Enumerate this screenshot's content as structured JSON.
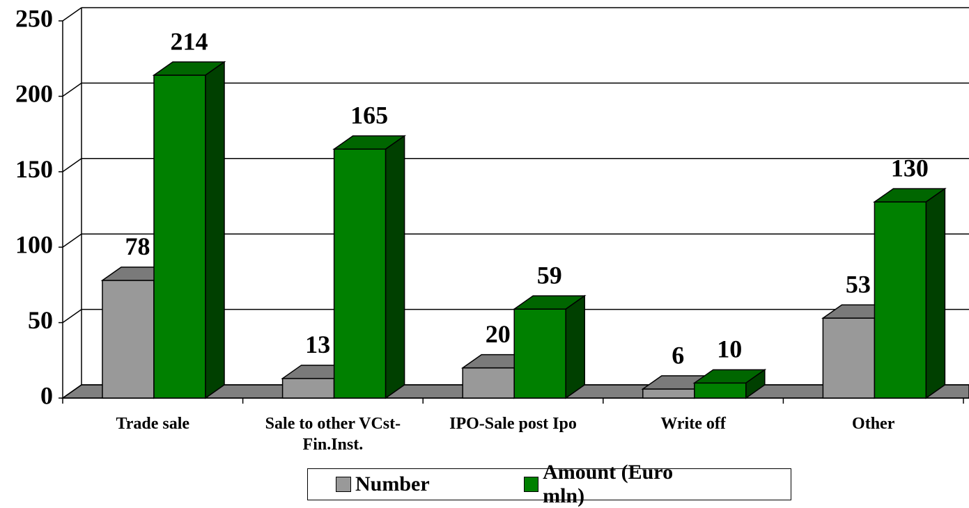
{
  "chart_data": {
    "type": "bar3d",
    "categories": [
      "Trade sale",
      "Sale to other VCst-Fin.Inst.",
      "IPO-Sale post Ipo",
      "Write off",
      "Other"
    ],
    "series": [
      {
        "name": "Number",
        "color": "#999999",
        "values": [
          78,
          13,
          20,
          6,
          53
        ]
      },
      {
        "name": "Amount (Euro mln)",
        "color": "#008000",
        "values": [
          214,
          165,
          59,
          10,
          130
        ]
      }
    ],
    "ylim": [
      0,
      250
    ],
    "yticks": [
      0,
      50,
      100,
      150,
      200,
      250
    ],
    "grid": true,
    "legend": "bottom"
  }
}
